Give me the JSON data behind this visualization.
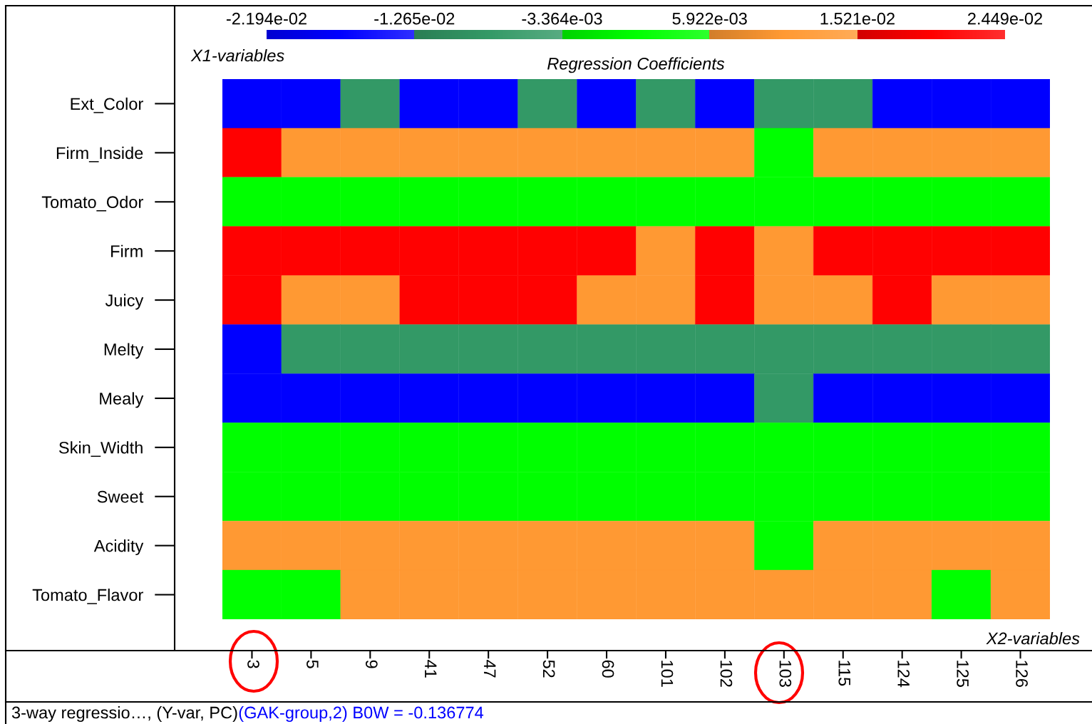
{
  "chart_data": {
    "type": "heatmap",
    "clabel": "Regression Coefficients",
    "xlabel": "X2-variables",
    "ylabel": "X1-variables",
    "categories": [
      "3",
      "5",
      "9",
      "41",
      "47",
      "52",
      "60",
      "101",
      "102",
      "103",
      "115",
      "124",
      "125",
      "126"
    ],
    "y_categories": [
      "Ext_Color",
      "Firm_Inside",
      "Tomato_Odor",
      "Firm",
      "Juicy",
      "Melty",
      "Mealy",
      "Skin_Width",
      "Sweet",
      "Acidity",
      "Tomato_Flavor"
    ],
    "cells": [
      [
        -0.0173,
        -0.0173,
        -0.008,
        -0.0173,
        -0.0173,
        -0.008,
        -0.0173,
        -0.008,
        -0.0173,
        -0.008,
        -0.008,
        -0.0173,
        -0.0173,
        -0.0173
      ],
      [
        0.0199,
        0.0106,
        0.0106,
        0.0106,
        0.0106,
        0.0106,
        0.0106,
        0.0106,
        0.0106,
        0.0013,
        0.0106,
        0.0106,
        0.0106,
        0.0106
      ],
      [
        0.0013,
        0.0013,
        0.0013,
        0.0013,
        0.0013,
        0.0013,
        0.0013,
        0.0013,
        0.0013,
        0.0013,
        0.0013,
        0.0013,
        0.0013,
        0.0013
      ],
      [
        0.0199,
        0.0199,
        0.0199,
        0.0199,
        0.0199,
        0.0199,
        0.0199,
        0.0106,
        0.0199,
        0.0106,
        0.0199,
        0.0199,
        0.0199,
        0.0199
      ],
      [
        0.0199,
        0.0106,
        0.0106,
        0.0199,
        0.0199,
        0.0199,
        0.0106,
        0.0106,
        0.0199,
        0.0106,
        0.0106,
        0.0199,
        0.0106,
        0.0106
      ],
      [
        -0.0173,
        -0.008,
        -0.008,
        -0.008,
        -0.008,
        -0.008,
        -0.008,
        -0.008,
        -0.008,
        -0.008,
        -0.008,
        -0.008,
        -0.008,
        -0.008
      ],
      [
        -0.0173,
        -0.0173,
        -0.0173,
        -0.0173,
        -0.0173,
        -0.0173,
        -0.0173,
        -0.0173,
        -0.0173,
        -0.008,
        -0.0173,
        -0.0173,
        -0.0173,
        -0.0173
      ],
      [
        0.0013,
        0.0013,
        0.0013,
        0.0013,
        0.0013,
        0.0013,
        0.0013,
        0.0013,
        0.0013,
        0.0013,
        0.0013,
        0.0013,
        0.0013,
        0.0013
      ],
      [
        0.0013,
        0.0013,
        0.0013,
        0.0013,
        0.0013,
        0.0013,
        0.0013,
        0.0013,
        0.0013,
        0.0013,
        0.0013,
        0.0013,
        0.0013,
        0.0013
      ],
      [
        0.0106,
        0.0106,
        0.0106,
        0.0106,
        0.0106,
        0.0106,
        0.0106,
        0.0106,
        0.0106,
        0.0013,
        0.0106,
        0.0106,
        0.0106,
        0.0106
      ],
      [
        0.0013,
        0.0013,
        0.0106,
        0.0106,
        0.0106,
        0.0106,
        0.0106,
        0.0106,
        0.0106,
        0.0106,
        0.0106,
        0.0106,
        0.0013,
        0.0106
      ]
    ],
    "colors": [
      "#0000ff",
      "#339966",
      "#00ff00",
      "#ff9933",
      "#ff0000"
    ],
    "clim": [
      -0.02194,
      0.02449
    ],
    "cticks": [
      {
        "value": -0.02194,
        "label": "-2.194e-02"
      },
      {
        "value": -0.01265,
        "label": "-1.265e-02"
      },
      {
        "value": -0.003364,
        "label": "-3.364e-03"
      },
      {
        "value": 0.005922,
        "label": "5.922e-03"
      },
      {
        "value": 0.01521,
        "label": "1.521e-02"
      },
      {
        "value": 0.02449,
        "label": "2.449e-02"
      }
    ],
    "annotations": [
      "3-way regressio…, (Y-var, PC)",
      "(GAK-group,2) B0W = -0.136774"
    ]
  }
}
